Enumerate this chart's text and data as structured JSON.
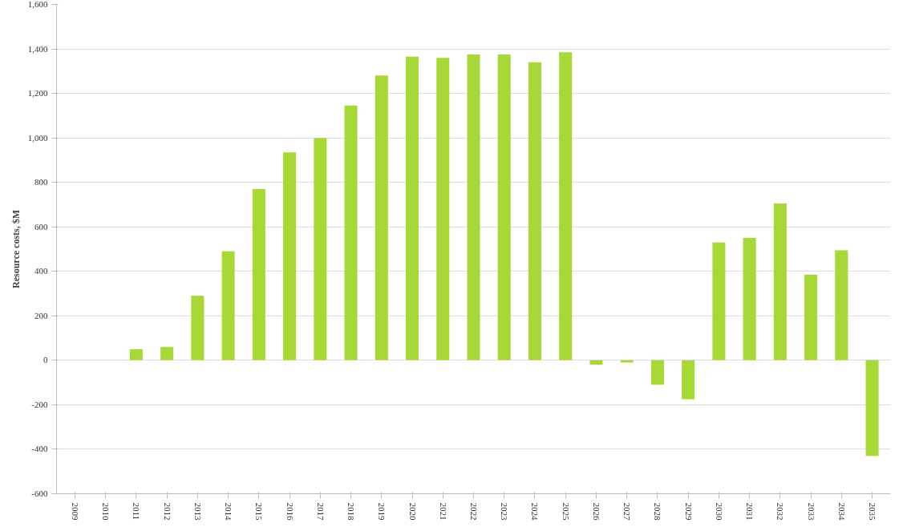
{
  "chart_data": {
    "type": "bar",
    "ylabel": "Resource costs, $M",
    "categories": [
      "2009",
      "2010",
      "2011",
      "2012",
      "2013",
      "2014",
      "2015",
      "2016",
      "2017",
      "2018",
      "2019",
      "2020",
      "2021",
      "2022",
      "2023",
      "2024",
      "2025",
      "2026",
      "2027",
      "2028",
      "2029",
      "2030",
      "2031",
      "2032",
      "2033",
      "2034",
      "2035"
    ],
    "values": [
      0,
      0,
      50,
      60,
      290,
      490,
      770,
      935,
      1000,
      1145,
      1280,
      1365,
      1360,
      1375,
      1375,
      1340,
      1385,
      -20,
      -10,
      -110,
      -175,
      530,
      550,
      705,
      385,
      495,
      -430
    ],
    "color": "#a8d838",
    "ylim": [
      -600,
      1600
    ],
    "yticks": [
      {
        "value": -600,
        "label": "-600"
      },
      {
        "value": -400,
        "label": "-400"
      },
      {
        "value": -200,
        "label": "-200"
      },
      {
        "value": 0,
        "label": "0"
      },
      {
        "value": 200,
        "label": "200"
      },
      {
        "value": 400,
        "label": "400"
      },
      {
        "value": 600,
        "label": "600"
      },
      {
        "value": 800,
        "label": "800"
      },
      {
        "value": 1000,
        "label": "1,000"
      },
      {
        "value": 1200,
        "label": "1,200"
      },
      {
        "value": 1400,
        "label": "1,400"
      },
      {
        "value": 1600,
        "label": "1,600"
      }
    ],
    "grid": "y"
  }
}
